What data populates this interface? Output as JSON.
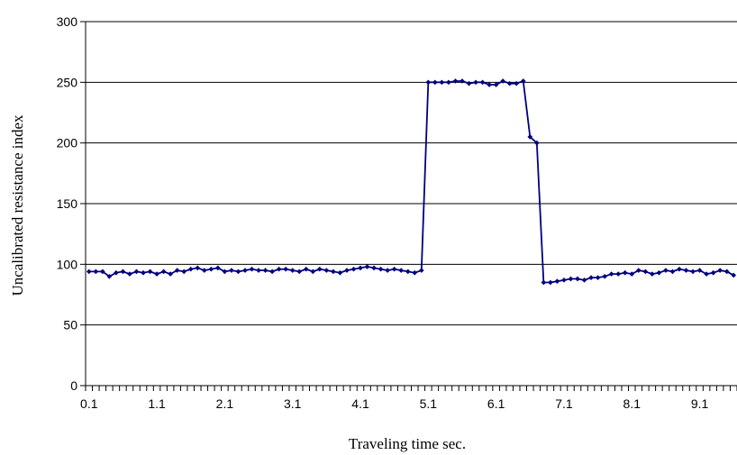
{
  "chart_data": {
    "type": "line",
    "title": "",
    "xlabel": "Traveling time sec.",
    "ylabel": "Uncalibrated resistance index",
    "ylim": [
      0,
      300
    ],
    "y_ticks": [
      0,
      50,
      100,
      150,
      200,
      250,
      300
    ],
    "y_tick_labels": [
      "0",
      "50",
      "100",
      "150",
      "200",
      "250",
      "300"
    ],
    "grid": "horizontal",
    "x_tick_labels": [
      "0.1",
      "1.1",
      "2.1",
      "3.1",
      "4.1",
      "5.1",
      "6.1",
      "7.1",
      "8.1",
      "9.1"
    ],
    "x_tick_label_every": 10,
    "series": [
      {
        "color": "#000080",
        "marker": "diamond",
        "x": [
          0.1,
          0.2,
          0.3,
          0.4,
          0.5,
          0.6,
          0.7,
          0.8,
          0.9,
          1.0,
          1.1,
          1.2,
          1.3,
          1.4,
          1.5,
          1.6,
          1.7,
          1.8,
          1.9,
          2.0,
          2.1,
          2.2,
          2.3,
          2.4,
          2.5,
          2.6,
          2.7,
          2.8,
          2.9,
          3.0,
          3.1,
          3.2,
          3.3,
          3.4,
          3.5,
          3.6,
          3.7,
          3.8,
          3.9,
          4.0,
          4.1,
          4.2,
          4.3,
          4.4,
          4.5,
          4.6,
          4.7,
          4.8,
          4.9,
          5.0,
          5.1,
          5.2,
          5.3,
          5.4,
          5.5,
          5.6,
          5.7,
          5.8,
          5.9,
          6.0,
          6.1,
          6.2,
          6.3,
          6.4,
          6.5,
          6.6,
          6.7,
          6.8,
          6.9,
          7.0,
          7.1,
          7.2,
          7.3,
          7.4,
          7.5,
          7.6,
          7.7,
          7.8,
          7.9,
          8.0,
          8.1,
          8.2,
          8.3,
          8.4,
          8.5,
          8.6,
          8.7,
          8.8,
          8.9,
          9.0,
          9.1,
          9.2,
          9.3,
          9.4,
          9.5,
          9.6
        ],
        "values": [
          94,
          94,
          94,
          90,
          93,
          94,
          92,
          94,
          93,
          94,
          92,
          94,
          92,
          95,
          94,
          96,
          97,
          95,
          96,
          97,
          94,
          95,
          94,
          95,
          96,
          95,
          95,
          94,
          96,
          96,
          95,
          94,
          96,
          94,
          96,
          95,
          94,
          93,
          95,
          96,
          97,
          98,
          97,
          96,
          95,
          96,
          95,
          94,
          93,
          95,
          250,
          250,
          250,
          250,
          251,
          251,
          249,
          250,
          250,
          248,
          248,
          251,
          249,
          249,
          251,
          205,
          200,
          85,
          85,
          86,
          87,
          88,
          88,
          87,
          89,
          89,
          90,
          92,
          92,
          93,
          92,
          95,
          94,
          92,
          93,
          95,
          94,
          96,
          95,
          94,
          95,
          92,
          93,
          95,
          94,
          91
        ]
      }
    ]
  }
}
